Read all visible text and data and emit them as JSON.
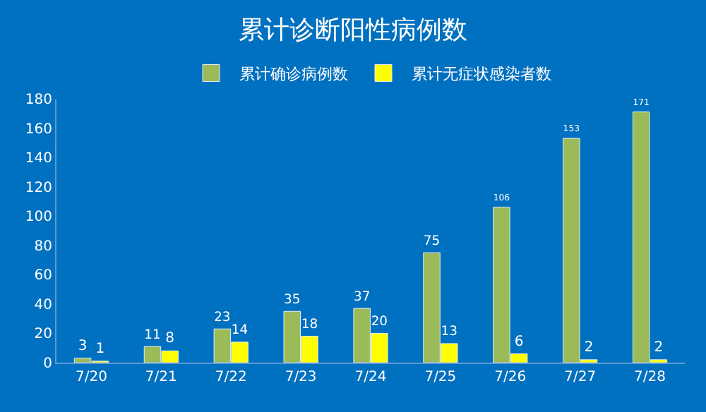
{
  "chart_data": {
    "type": "bar",
    "title": "累计诊断阳性病例数",
    "categories": [
      "7/20",
      "7/21",
      "7/22",
      "7/23",
      "7/24",
      "7/25",
      "7/26",
      "7/27",
      "7/28"
    ],
    "series": [
      {
        "name": "累计确诊病例数",
        "color": "#9bbb59",
        "values": [
          3,
          11,
          23,
          35,
          37,
          75,
          106,
          153,
          171
        ]
      },
      {
        "name": "累计无症状感染者数",
        "color": "#ffff00",
        "values": [
          1,
          8,
          14,
          18,
          20,
          13,
          6,
          2,
          2
        ]
      }
    ],
    "ylim": [
      0,
      180
    ],
    "yticks": [
      0,
      20,
      40,
      60,
      80,
      100,
      120,
      140,
      160,
      180
    ],
    "grid": false,
    "legend": "top",
    "data_labels": true
  }
}
